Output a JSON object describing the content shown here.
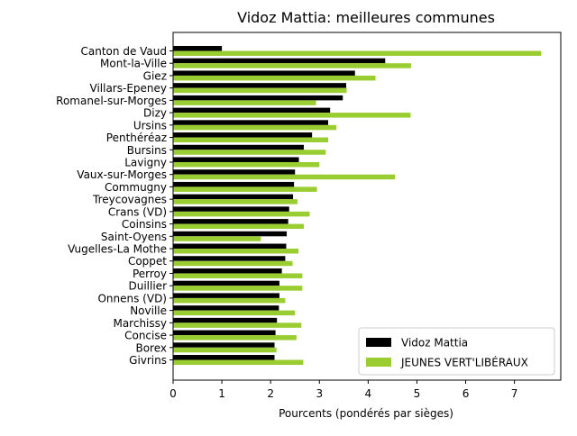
{
  "chart_data": {
    "type": "bar",
    "orientation": "horizontal",
    "title": "Vidoz Mattia: meilleures communes",
    "xlabel": "Pourcents (pondérés par sièges)",
    "ylabel": "",
    "xlim": [
      0,
      7.95
    ],
    "xticks": [
      0,
      1,
      2,
      3,
      4,
      5,
      6,
      7
    ],
    "grid": false,
    "legend_position": "lower-right",
    "categories": [
      "Canton de Vaud",
      "Mont-la-Ville",
      "Giez",
      "Villars-Epeney",
      "Romanel-sur-Morges",
      "Dizy",
      "Ursins",
      "Penthéréaz",
      "Bursins",
      "Lavigny",
      "Vaux-sur-Morges",
      "Commugny",
      "Treycovagnes",
      "Crans (VD)",
      "Coinsins",
      "Saint-Oyens",
      "Vugelles-La Mothe",
      "Coppet",
      "Perroy",
      "Duillier",
      "Onnens (VD)",
      "Noville",
      "Marchissy",
      "Concise",
      "Borex",
      "Givrins"
    ],
    "series": [
      {
        "name": "Vidoz Mattia",
        "color": "#000000",
        "values": [
          1.0,
          4.35,
          3.73,
          3.55,
          3.48,
          3.22,
          3.18,
          2.85,
          2.68,
          2.58,
          2.5,
          2.48,
          2.46,
          2.38,
          2.36,
          2.33,
          2.32,
          2.3,
          2.23,
          2.18,
          2.18,
          2.17,
          2.13,
          2.1,
          2.08,
          2.08
        ]
      },
      {
        "name": "JEUNES VERT'LIBÉRAUX",
        "color": "#9acd32",
        "values": [
          7.55,
          4.88,
          4.15,
          3.56,
          2.93,
          4.87,
          3.35,
          3.18,
          3.13,
          3.0,
          4.55,
          2.95,
          2.55,
          2.8,
          2.68,
          1.8,
          2.57,
          2.45,
          2.65,
          2.65,
          2.3,
          2.5,
          2.63,
          2.53,
          2.12,
          2.67
        ]
      }
    ]
  }
}
